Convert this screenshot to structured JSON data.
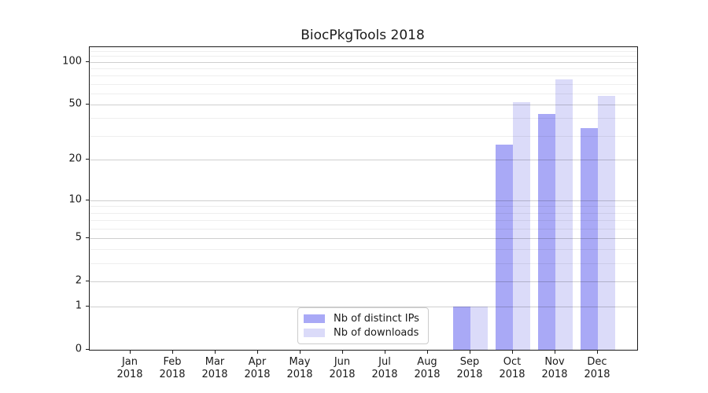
{
  "chart_data": {
    "type": "bar",
    "title": "BiocPkgTools 2018",
    "categories": [
      "Jan",
      "Feb",
      "Mar",
      "Apr",
      "May",
      "Jun",
      "Jul",
      "Aug",
      "Sep",
      "Oct",
      "Nov",
      "Dec"
    ],
    "x_year": "2018",
    "series": [
      {
        "name": "Nb of distinct IPs",
        "color": "#a9a9f6",
        "values": [
          0,
          0,
          0,
          0,
          0,
          0,
          0,
          0,
          1,
          26,
          43,
          34
        ]
      },
      {
        "name": "Nb of downloads",
        "color": "#dbdbf9",
        "values": [
          0,
          0,
          0,
          0,
          0,
          0,
          0,
          0,
          1,
          52,
          75,
          58
        ]
      }
    ],
    "yscale": "log1p",
    "ylim": [
      0,
      127
    ],
    "y_major_ticks": [
      100,
      50,
      20,
      10,
      5,
      2,
      1,
      0
    ],
    "y_minor_ticks": [
      3,
      4,
      6,
      7,
      8,
      9,
      30,
      40,
      60,
      70,
      80,
      90,
      110,
      120
    ],
    "grid": true,
    "legend_position": "lower center"
  }
}
